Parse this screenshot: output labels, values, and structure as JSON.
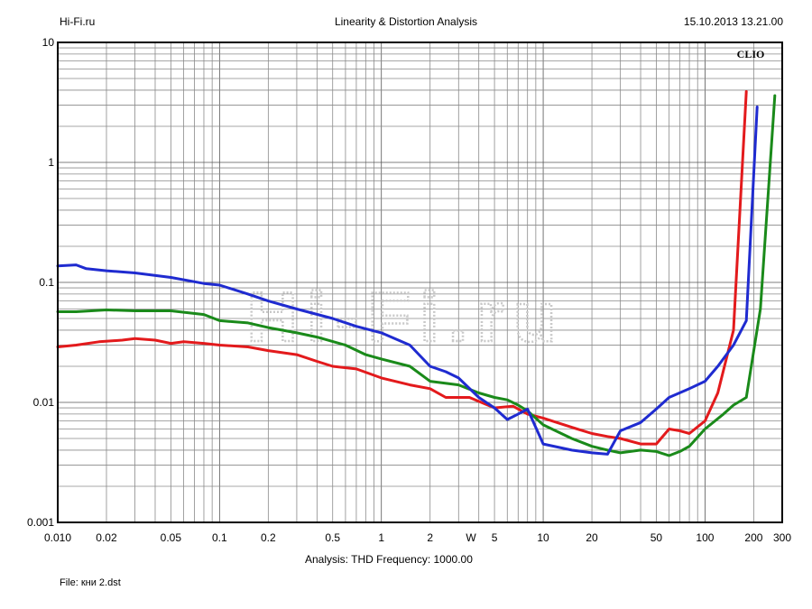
{
  "header": {
    "brand": "Hi-Fi.ru",
    "title": "Linearity & Distortion Analysis",
    "timestamp": "15.10.2013 13.21.00"
  },
  "footer": {
    "analysis": "Analysis: THD   Frequency: 1000.00",
    "file": "File: кни 2.dst"
  },
  "chart_data": {
    "type": "line",
    "title": "Linearity & Distortion Analysis",
    "xlabel": "W",
    "ylabel": "",
    "xscale": "log",
    "yscale": "log",
    "xlim": [
      0.01,
      300
    ],
    "ylim": [
      0.001,
      10
    ],
    "grid": true,
    "xticks": [
      {
        "v": 0.01,
        "label": "0.010"
      },
      {
        "v": 0.02,
        "label": "0.02"
      },
      {
        "v": 0.05,
        "label": "0.05"
      },
      {
        "v": 0.1,
        "label": "0.1"
      },
      {
        "v": 0.2,
        "label": "0.2"
      },
      {
        "v": 0.5,
        "label": "0.5"
      },
      {
        "v": 1,
        "label": "1"
      },
      {
        "v": 2,
        "label": "2"
      },
      {
        "v": 5,
        "label": "5"
      },
      {
        "v": 10,
        "label": "10"
      },
      {
        "v": 20,
        "label": "20"
      },
      {
        "v": 50,
        "label": "50"
      },
      {
        "v": 100,
        "label": "100"
      },
      {
        "v": 200,
        "label": "200"
      },
      {
        "v": 300,
        "label": "300"
      }
    ],
    "yticks": [
      {
        "v": 10,
        "label": "10"
      },
      {
        "v": 1,
        "label": "1"
      },
      {
        "v": 0.1,
        "label": "0.1"
      },
      {
        "v": 0.01,
        "label": "0.01"
      },
      {
        "v": 0.001,
        "label": "0.001"
      }
    ],
    "annotation": "CLIO",
    "watermark": "Hi-Fi.ru",
    "series": [
      {
        "color": "#e31a1c",
        "points": [
          [
            0.01,
            0.029
          ],
          [
            0.013,
            0.03
          ],
          [
            0.018,
            0.032
          ],
          [
            0.025,
            0.033
          ],
          [
            0.03,
            0.034
          ],
          [
            0.04,
            0.033
          ],
          [
            0.05,
            0.031
          ],
          [
            0.06,
            0.032
          ],
          [
            0.08,
            0.031
          ],
          [
            0.1,
            0.03
          ],
          [
            0.15,
            0.029
          ],
          [
            0.2,
            0.027
          ],
          [
            0.3,
            0.025
          ],
          [
            0.4,
            0.022
          ],
          [
            0.5,
            0.02
          ],
          [
            0.7,
            0.019
          ],
          [
            1.0,
            0.016
          ],
          [
            1.5,
            0.014
          ],
          [
            2.0,
            0.013
          ],
          [
            2.5,
            0.011
          ],
          [
            3.5,
            0.011
          ],
          [
            5.0,
            0.009
          ],
          [
            6.5,
            0.0093
          ],
          [
            8.0,
            0.008
          ],
          [
            10,
            0.0074
          ],
          [
            15,
            0.0062
          ],
          [
            20,
            0.0055
          ],
          [
            25,
            0.0052
          ],
          [
            30,
            0.005
          ],
          [
            40,
            0.0045
          ],
          [
            50,
            0.0045
          ],
          [
            60,
            0.006
          ],
          [
            70,
            0.0058
          ],
          [
            80,
            0.0055
          ],
          [
            100,
            0.007
          ],
          [
            120,
            0.012
          ],
          [
            150,
            0.04
          ],
          [
            180,
            3.9
          ]
        ]
      },
      {
        "color": "#1a8a1a",
        "points": [
          [
            0.01,
            0.057
          ],
          [
            0.013,
            0.057
          ],
          [
            0.02,
            0.059
          ],
          [
            0.03,
            0.058
          ],
          [
            0.05,
            0.058
          ],
          [
            0.08,
            0.054
          ],
          [
            0.1,
            0.048
          ],
          [
            0.15,
            0.046
          ],
          [
            0.2,
            0.042
          ],
          [
            0.3,
            0.038
          ],
          [
            0.4,
            0.035
          ],
          [
            0.6,
            0.03
          ],
          [
            0.8,
            0.025
          ],
          [
            1.0,
            0.023
          ],
          [
            1.5,
            0.02
          ],
          [
            2.0,
            0.015
          ],
          [
            3.0,
            0.014
          ],
          [
            4.0,
            0.012
          ],
          [
            5.0,
            0.011
          ],
          [
            6.0,
            0.0105
          ],
          [
            7.0,
            0.0095
          ],
          [
            8.0,
            0.0085
          ],
          [
            10,
            0.0065
          ],
          [
            15,
            0.005
          ],
          [
            20,
            0.0043
          ],
          [
            25,
            0.004
          ],
          [
            30,
            0.0038
          ],
          [
            40,
            0.004
          ],
          [
            50,
            0.0039
          ],
          [
            60,
            0.0036
          ],
          [
            70,
            0.0039
          ],
          [
            80,
            0.0043
          ],
          [
            100,
            0.006
          ],
          [
            130,
            0.008
          ],
          [
            150,
            0.0095
          ],
          [
            180,
            0.011
          ],
          [
            220,
            0.06
          ],
          [
            270,
            3.6
          ]
        ]
      },
      {
        "color": "#1f2bd0",
        "points": [
          [
            0.01,
            0.137
          ],
          [
            0.013,
            0.14
          ],
          [
            0.015,
            0.13
          ],
          [
            0.02,
            0.125
          ],
          [
            0.03,
            0.12
          ],
          [
            0.05,
            0.11
          ],
          [
            0.08,
            0.098
          ],
          [
            0.1,
            0.095
          ],
          [
            0.15,
            0.08
          ],
          [
            0.2,
            0.07
          ],
          [
            0.3,
            0.06
          ],
          [
            0.5,
            0.05
          ],
          [
            0.7,
            0.043
          ],
          [
            1.0,
            0.038
          ],
          [
            1.5,
            0.03
          ],
          [
            2.0,
            0.02
          ],
          [
            2.5,
            0.018
          ],
          [
            3.0,
            0.016
          ],
          [
            4.0,
            0.011
          ],
          [
            5.0,
            0.009
          ],
          [
            6.0,
            0.0072
          ],
          [
            7.0,
            0.008
          ],
          [
            8.0,
            0.0088
          ],
          [
            10,
            0.0045
          ],
          [
            15,
            0.004
          ],
          [
            20,
            0.0038
          ],
          [
            25,
            0.0037
          ],
          [
            30,
            0.0058
          ],
          [
            40,
            0.0068
          ],
          [
            50,
            0.0088
          ],
          [
            60,
            0.011
          ],
          [
            80,
            0.013
          ],
          [
            100,
            0.015
          ],
          [
            120,
            0.02
          ],
          [
            150,
            0.03
          ],
          [
            180,
            0.048
          ],
          [
            210,
            2.9
          ]
        ]
      }
    ]
  }
}
